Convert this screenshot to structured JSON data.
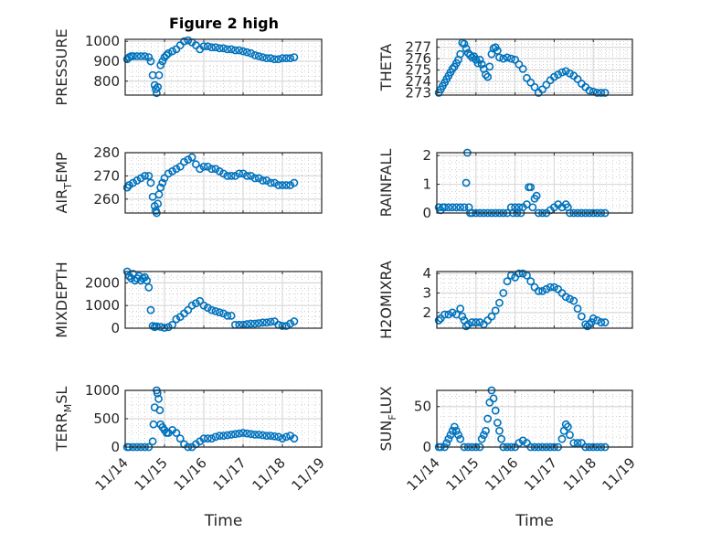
{
  "figure_title": "Figure 2 high",
  "chart_data": [
    {
      "type": "scatter",
      "panel": "PRESSURE",
      "title": "Figure 2 high",
      "ylabel": "PRESSURE",
      "ylabel_sub": null,
      "xlabel": "",
      "xlim": [
        0,
        5
      ],
      "ylim": [
        730,
        1010
      ],
      "yticks": [
        800,
        900,
        1000
      ],
      "xticklabels": [],
      "grid": true,
      "minor_grid": true,
      "x": [
        0.05,
        0.1,
        0.15,
        0.2,
        0.3,
        0.4,
        0.5,
        0.6,
        0.65,
        0.7,
        0.75,
        0.78,
        0.8,
        0.83,
        0.86,
        0.9,
        0.95,
        1.0,
        1.05,
        1.1,
        1.2,
        1.3,
        1.4,
        1.5,
        1.6,
        1.7,
        1.8,
        1.9,
        2.0,
        2.1,
        2.2,
        2.3,
        2.4,
        2.5,
        2.6,
        2.7,
        2.8,
        2.9,
        3.0,
        3.1,
        3.2,
        3.3,
        3.4,
        3.5,
        3.6,
        3.7,
        3.8,
        3.9,
        4.0,
        4.1,
        4.2,
        4.3
      ],
      "y": [
        910,
        920,
        925,
        925,
        925,
        925,
        925,
        920,
        900,
        830,
        780,
        760,
        740,
        770,
        830,
        880,
        900,
        920,
        930,
        940,
        950,
        960,
        980,
        1000,
        1005,
        995,
        980,
        960,
        975,
        975,
        970,
        970,
        965,
        965,
        960,
        960,
        955,
        955,
        950,
        945,
        940,
        930,
        925,
        920,
        915,
        915,
        910,
        910,
        915,
        915,
        915,
        920
      ]
    },
    {
      "type": "scatter",
      "panel": "THETA",
      "ylabel": "THETA",
      "xlabel": "",
      "xlim": [
        0,
        5
      ],
      "ylim": [
        272.8,
        277.7
      ],
      "yticks": [
        273,
        274,
        275,
        276,
        277
      ],
      "xticklabels": [],
      "grid": true,
      "minor_grid": true,
      "x": [
        0.05,
        0.1,
        0.15,
        0.2,
        0.25,
        0.3,
        0.35,
        0.4,
        0.45,
        0.5,
        0.55,
        0.6,
        0.65,
        0.7,
        0.75,
        0.8,
        0.85,
        0.9,
        0.95,
        1.0,
        1.05,
        1.1,
        1.15,
        1.2,
        1.25,
        1.3,
        1.35,
        1.4,
        1.45,
        1.5,
        1.55,
        1.6,
        1.7,
        1.8,
        1.9,
        2.0,
        2.1,
        2.2,
        2.3,
        2.4,
        2.5,
        2.6,
        2.7,
        2.8,
        2.9,
        3.0,
        3.1,
        3.2,
        3.3,
        3.4,
        3.5,
        3.6,
        3.7,
        3.8,
        3.9,
        4.0,
        4.1,
        4.2,
        4.3
      ],
      "y": [
        273,
        273.3,
        273.6,
        273.9,
        274.2,
        274.5,
        274.8,
        275.1,
        275.3,
        275.6,
        275.9,
        276.4,
        277.4,
        277.3,
        276.9,
        276.5,
        276.3,
        276.1,
        276.2,
        275.9,
        275.6,
        275.9,
        275.5,
        275.1,
        274.6,
        274.4,
        275.3,
        276.4,
        276.9,
        277.0,
        276.7,
        276.1,
        276.0,
        276.1,
        276.0,
        275.9,
        275.5,
        275.1,
        274.3,
        273.9,
        273.5,
        273.0,
        273.3,
        273.7,
        274.1,
        274.4,
        274.6,
        274.8,
        274.9,
        274.7,
        274.5,
        274.2,
        273.8,
        273.5,
        273.2,
        273.1,
        273.0,
        273.0,
        273.0
      ]
    },
    {
      "type": "scatter",
      "panel": "AIR_TEMP",
      "ylabel": "AIR",
      "ylabel_sub": "T",
      "ylabel_rest": "EMP",
      "xlabel": "",
      "xlim": [
        0,
        5
      ],
      "ylim": [
        254,
        280
      ],
      "yticks": [
        260,
        270,
        280
      ],
      "xticklabels": [],
      "grid": true,
      "minor_grid": true,
      "x": [
        0.05,
        0.1,
        0.2,
        0.3,
        0.4,
        0.5,
        0.6,
        0.65,
        0.7,
        0.75,
        0.78,
        0.8,
        0.83,
        0.86,
        0.9,
        0.95,
        1.0,
        1.1,
        1.2,
        1.3,
        1.4,
        1.5,
        1.6,
        1.7,
        1.8,
        1.9,
        2.0,
        2.1,
        2.2,
        2.3,
        2.4,
        2.5,
        2.6,
        2.7,
        2.8,
        2.9,
        3.0,
        3.1,
        3.2,
        3.3,
        3.4,
        3.5,
        3.6,
        3.7,
        3.8,
        3.9,
        4.0,
        4.1,
        4.2,
        4.3
      ],
      "y": [
        265,
        266,
        267,
        268,
        269,
        270,
        270,
        267,
        261,
        257,
        255,
        254,
        258,
        262,
        265,
        267,
        269,
        271,
        272,
        273,
        274,
        276,
        277,
        278,
        275,
        273,
        274,
        274,
        273,
        273,
        272,
        271,
        270,
        270,
        270,
        271,
        271,
        270,
        270,
        269,
        269,
        268,
        268,
        267,
        267,
        266,
        266,
        266,
        266,
        267
      ]
    },
    {
      "type": "scatter",
      "panel": "RAINFALL",
      "ylabel": "RAINFALL",
      "xlabel": "",
      "xlim": [
        0,
        5
      ],
      "ylim": [
        0,
        2.1
      ],
      "yticks": [
        0,
        1,
        2
      ],
      "xticklabels": [],
      "grid": true,
      "minor_grid": true,
      "x": [
        0.05,
        0.1,
        0.15,
        0.2,
        0.3,
        0.4,
        0.5,
        0.6,
        0.7,
        0.75,
        0.78,
        0.82,
        0.85,
        0.9,
        1.0,
        1.1,
        1.2,
        1.3,
        1.4,
        1.5,
        1.6,
        1.7,
        1.8,
        1.9,
        1.95,
        2.0,
        2.05,
        2.1,
        2.15,
        2.2,
        2.3,
        2.35,
        2.4,
        2.45,
        2.5,
        2.55,
        2.6,
        2.7,
        2.8,
        2.9,
        3.0,
        3.1,
        3.2,
        3.3,
        3.35,
        3.4,
        3.5,
        3.6,
        3.7,
        3.8,
        3.9,
        4.0,
        4.1,
        4.2,
        4.3
      ],
      "y": [
        0.2,
        0.1,
        0.2,
        0.2,
        0.2,
        0.2,
        0.2,
        0.2,
        0.2,
        1.05,
        2.1,
        0.2,
        0.0,
        0.0,
        0.0,
        0.0,
        0.0,
        0.0,
        0.0,
        0.0,
        0.0,
        0.0,
        0.0,
        0.2,
        0.0,
        0.2,
        0.0,
        0.2,
        0.0,
        0.2,
        0.3,
        0.9,
        0.9,
        0.2,
        0.5,
        0.6,
        0.0,
        0.0,
        0.0,
        0.1,
        0.2,
        0.3,
        0.2,
        0.3,
        0.2,
        0.0,
        0.0,
        0.0,
        0.0,
        0.0,
        0.0,
        0.0,
        0.0,
        0.0,
        0.0
      ]
    },
    {
      "type": "scatter",
      "panel": "MIXDEPTH",
      "ylabel": "MIXDEPTH",
      "xlabel": "",
      "xlim": [
        0,
        5
      ],
      "ylim": [
        0,
        2500
      ],
      "yticks": [
        0,
        1000,
        2000
      ],
      "xticklabels": [],
      "grid": true,
      "minor_grid": true,
      "x": [
        0.05,
        0.1,
        0.15,
        0.2,
        0.25,
        0.3,
        0.35,
        0.4,
        0.45,
        0.5,
        0.55,
        0.6,
        0.65,
        0.7,
        0.75,
        0.8,
        0.9,
        1.0,
        1.1,
        1.2,
        1.3,
        1.4,
        1.5,
        1.6,
        1.7,
        1.8,
        1.9,
        2.0,
        2.1,
        2.2,
        2.3,
        2.4,
        2.5,
        2.6,
        2.7,
        2.8,
        2.9,
        3.0,
        3.1,
        3.2,
        3.3,
        3.4,
        3.5,
        3.6,
        3.7,
        3.8,
        3.9,
        4.0,
        4.1,
        4.2,
        4.3
      ],
      "y": [
        2500,
        2300,
        2200,
        2400,
        2100,
        2200,
        2300,
        2100,
        2200,
        2250,
        2100,
        1800,
        800,
        100,
        50,
        80,
        60,
        20,
        50,
        150,
        400,
        500,
        650,
        800,
        1000,
        1100,
        1200,
        1000,
        900,
        800,
        750,
        700,
        650,
        550,
        550,
        150,
        150,
        150,
        180,
        200,
        200,
        220,
        250,
        250,
        280,
        300,
        150,
        100,
        100,
        200,
        300
      ]
    },
    {
      "type": "scatter",
      "panel": "H2OMIXRA",
      "ylabel": "H2OMIXRA",
      "xlabel": "",
      "xlim": [
        0,
        5
      ],
      "ylim": [
        1.2,
        4.1
      ],
      "yticks": [
        2,
        3,
        4
      ],
      "xticklabels": [],
      "grid": true,
      "minor_grid": true,
      "x": [
        0.05,
        0.1,
        0.2,
        0.3,
        0.4,
        0.5,
        0.6,
        0.65,
        0.7,
        0.75,
        0.8,
        0.9,
        1.0,
        1.1,
        1.2,
        1.3,
        1.4,
        1.5,
        1.6,
        1.7,
        1.8,
        1.9,
        2.0,
        2.1,
        2.2,
        2.3,
        2.4,
        2.5,
        2.6,
        2.7,
        2.8,
        2.9,
        3.0,
        3.1,
        3.2,
        3.3,
        3.4,
        3.5,
        3.6,
        3.7,
        3.8,
        3.85,
        3.9,
        3.95,
        4.0,
        4.1,
        4.2,
        4.3
      ],
      "y": [
        1.6,
        1.7,
        1.9,
        1.9,
        2.0,
        1.9,
        2.2,
        1.8,
        1.6,
        1.3,
        1.4,
        1.5,
        1.5,
        1.5,
        1.4,
        1.6,
        1.8,
        2.1,
        2.5,
        3.0,
        3.6,
        3.9,
        3.8,
        4.0,
        4.0,
        3.9,
        3.6,
        3.3,
        3.1,
        3.1,
        3.2,
        3.3,
        3.3,
        3.2,
        3.0,
        2.8,
        2.7,
        2.6,
        2.2,
        1.8,
        1.4,
        1.3,
        1.4,
        1.5,
        1.7,
        1.6,
        1.5,
        1.5
      ]
    },
    {
      "type": "scatter",
      "panel": "TERR_MSL",
      "ylabel": "TERR",
      "ylabel_sub": "M",
      "ylabel_rest": "SL",
      "xlabel": "Time",
      "xlim": [
        0,
        5
      ],
      "ylim": [
        0,
        1000
      ],
      "yticks": [
        0,
        500,
        1000
      ],
      "xticklabels": [
        "11/14",
        "11/15",
        "11/16",
        "11/17",
        "11/18",
        "11/19"
      ],
      "grid": true,
      "minor_grid": true,
      "x": [
        0.05,
        0.1,
        0.2,
        0.3,
        0.4,
        0.5,
        0.6,
        0.7,
        0.72,
        0.75,
        0.8,
        0.82,
        0.85,
        0.88,
        0.9,
        0.95,
        1.0,
        1.05,
        1.1,
        1.2,
        1.3,
        1.4,
        1.5,
        1.6,
        1.7,
        1.8,
        1.9,
        2.0,
        2.1,
        2.2,
        2.3,
        2.4,
        2.5,
        2.6,
        2.7,
        2.8,
        2.9,
        3.0,
        3.1,
        3.2,
        3.3,
        3.4,
        3.5,
        3.6,
        3.7,
        3.8,
        3.9,
        4.0,
        4.1,
        4.2,
        4.3
      ],
      "y": [
        0,
        0,
        0,
        0,
        0,
        0,
        0,
        100,
        400,
        700,
        1000,
        950,
        850,
        650,
        400,
        350,
        300,
        250,
        250,
        300,
        250,
        150,
        50,
        0,
        0,
        50,
        100,
        150,
        150,
        150,
        180,
        200,
        200,
        210,
        220,
        230,
        240,
        250,
        240,
        230,
        220,
        220,
        210,
        200,
        200,
        190,
        180,
        150,
        180,
        200,
        150
      ]
    },
    {
      "type": "scatter",
      "panel": "SUN_FLUX",
      "ylabel": "SUN",
      "ylabel_sub": "F",
      "ylabel_rest": "LUX",
      "xlabel": "Time",
      "xlim": [
        0,
        5
      ],
      "ylim": [
        0,
        70
      ],
      "yticks": [
        0,
        50
      ],
      "xticklabels": [
        "11/14",
        "11/15",
        "11/16",
        "11/17",
        "11/18",
        "11/19"
      ],
      "grid": true,
      "minor_grid": true,
      "x": [
        0.05,
        0.1,
        0.2,
        0.25,
        0.3,
        0.35,
        0.4,
        0.45,
        0.5,
        0.55,
        0.6,
        0.7,
        0.8,
        0.9,
        1.0,
        1.1,
        1.15,
        1.2,
        1.25,
        1.3,
        1.35,
        1.4,
        1.45,
        1.5,
        1.55,
        1.6,
        1.65,
        1.7,
        1.8,
        1.9,
        2.0,
        2.1,
        2.2,
        2.3,
        2.4,
        2.5,
        2.6,
        2.7,
        2.8,
        2.9,
        3.0,
        3.1,
        3.2,
        3.25,
        3.3,
        3.35,
        3.4,
        3.5,
        3.6,
        3.7,
        3.8,
        3.9,
        4.0,
        4.1,
        4.2,
        4.3
      ],
      "y": [
        0,
        0,
        0,
        5,
        10,
        15,
        20,
        25,
        20,
        15,
        10,
        0,
        0,
        0,
        0,
        0,
        10,
        15,
        20,
        35,
        55,
        70,
        60,
        45,
        30,
        20,
        10,
        0,
        0,
        0,
        0,
        5,
        8,
        5,
        0,
        0,
        0,
        0,
        0,
        0,
        0,
        0,
        10,
        20,
        28,
        25,
        15,
        5,
        5,
        5,
        0,
        0,
        0,
        0,
        0,
        0
      ]
    }
  ]
}
